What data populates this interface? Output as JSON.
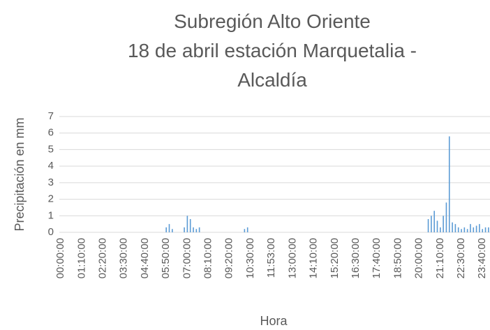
{
  "chart_data": {
    "type": "bar",
    "title": [
      "Subregión Alto Oriente",
      "18 de abril estación Marquetalia -",
      "Alcaldía"
    ],
    "y_label": "Precipitación en mm",
    "x_label": "Hora",
    "color": "#5b9bd5",
    "grid": true,
    "ylim": [
      0,
      7
    ],
    "yticks": [
      0,
      1,
      2,
      3,
      4,
      5,
      6,
      7
    ],
    "categories": [
      "00:00:00",
      null,
      null,
      null,
      null,
      null,
      null,
      "01:10:00",
      null,
      null,
      null,
      null,
      null,
      null,
      "02:20:00",
      null,
      null,
      null,
      null,
      null,
      null,
      "03:30:00",
      null,
      null,
      null,
      null,
      null,
      null,
      "04:40:00",
      null,
      null,
      null,
      null,
      null,
      null,
      "05:50:00",
      null,
      null,
      null,
      null,
      null,
      null,
      "07:00:00",
      null,
      null,
      null,
      null,
      null,
      null,
      "08:10:00",
      null,
      null,
      null,
      null,
      null,
      null,
      "09:20:00",
      null,
      null,
      null,
      null,
      null,
      null,
      "10:30:00",
      null,
      null,
      null,
      null,
      null,
      null,
      "11:53:00",
      null,
      null,
      null,
      null,
      null,
      null,
      "13:00:00",
      null,
      null,
      null,
      null,
      null,
      null,
      "14:10:00",
      null,
      null,
      null,
      null,
      null,
      null,
      "15:20:00",
      null,
      null,
      null,
      null,
      null,
      null,
      "16:30:00",
      null,
      null,
      null,
      null,
      null,
      null,
      "17:40:00",
      null,
      null,
      null,
      null,
      null,
      null,
      "18:50:00",
      null,
      null,
      null,
      null,
      null,
      null,
      "20:00:00",
      null,
      null,
      null,
      null,
      null,
      null,
      "21:10:00",
      null,
      null,
      null,
      null,
      null,
      null,
      "22:30:00",
      null,
      null,
      null,
      null,
      null,
      null,
      "23:40:00",
      null,
      null
    ],
    "values": [
      0,
      0,
      0,
      0,
      0,
      0,
      0,
      0,
      0,
      0,
      0,
      0,
      0,
      0,
      0,
      0,
      0,
      0,
      0,
      0,
      0,
      0,
      0,
      0,
      0,
      0,
      0,
      0,
      0,
      0,
      0,
      0,
      0,
      0,
      0,
      0.3,
      0.5,
      0.2,
      0,
      0,
      0,
      0.3,
      1.0,
      0.8,
      0.3,
      0.2,
      0.3,
      0,
      0,
      0,
      0,
      0,
      0,
      0,
      0,
      0,
      0,
      0,
      0,
      0,
      0,
      0.2,
      0.3,
      0,
      0,
      0,
      0,
      0,
      0,
      0,
      0,
      0,
      0,
      0,
      0,
      0,
      0,
      0,
      0,
      0,
      0,
      0,
      0,
      0,
      0,
      0,
      0,
      0,
      0,
      0,
      0,
      0,
      0,
      0,
      0,
      0,
      0,
      0,
      0,
      0,
      0,
      0,
      0,
      0,
      0,
      0,
      0,
      0,
      0,
      0,
      0,
      0,
      0,
      0,
      0,
      0,
      0,
      0,
      0,
      0,
      0,
      0,
      0.8,
      1.0,
      1.3,
      0.7,
      0.3,
      1.0,
      1.8,
      5.8,
      0.6,
      0.5,
      0.3,
      0.2,
      0.3,
      0.2,
      0.5,
      0.3,
      0.4,
      0.5,
      0.2,
      0.3,
      0.3
    ]
  }
}
